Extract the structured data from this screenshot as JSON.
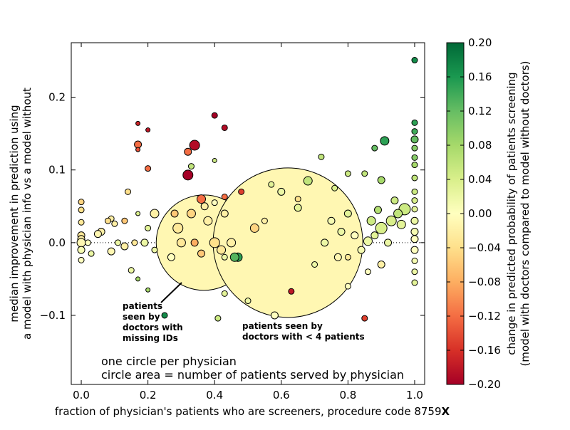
{
  "chart_data": {
    "type": "scatter",
    "xlabel": "fraction of physician's patients who are screeners, procedure code 8759",
    "xlabel_suffix": "X",
    "ylabel_lines": [
      "median improvement in prediction using",
      "a model with physician info vs a model without"
    ],
    "xlim": [
      -0.03,
      1.03
    ],
    "ylim": [
      -0.195,
      0.275
    ],
    "xticks": [
      0.0,
      0.2,
      0.4,
      0.6,
      0.8,
      1.0
    ],
    "xtick_labels": [
      "0.0",
      "0.2",
      "0.4",
      "0.6",
      "0.8",
      "1.0"
    ],
    "yticks": [
      -0.1,
      0.0,
      0.1,
      0.2
    ],
    "ytick_labels": [
      "−0.1",
      "0.0",
      "0.1",
      "0.2"
    ],
    "reference_line": {
      "y": 0.0,
      "style": "dotted"
    },
    "grid": false,
    "colorbar": {
      "label_lines": [
        "change in predicted probability of patients screening",
        "(model with doctors compared to model without doctors)"
      ],
      "range": [
        -0.2,
        0.2
      ],
      "ticks": [
        0.2,
        0.16,
        0.12,
        0.08,
        0.04,
        0.0,
        -0.04,
        -0.08,
        -0.12,
        -0.16,
        -0.2
      ],
      "tick_labels": [
        "0.20",
        "0.16",
        "0.12",
        "0.08",
        "0.04",
        "0.00",
        "−0.04",
        "−0.08",
        "−0.12",
        "−0.16",
        "−0.20"
      ],
      "colormap": "RdYlGn",
      "colormap_stops": [
        "#a50026",
        "#d73027",
        "#f46d43",
        "#fdae61",
        "#fee08b",
        "#ffffbf",
        "#d9ef8b",
        "#a6d96a",
        "#66bd63",
        "#1a9850",
        "#006837"
      ]
    },
    "notes": [
      "one circle per physician",
      "circle area = number of patients served by physician"
    ],
    "big_circles": [
      {
        "x": 0.368,
        "y": 0.0,
        "r_scale": "large",
        "color": -0.01,
        "label_lines": [
          "patients",
          "seen by",
          "doctors with",
          "missing IDs"
        ]
      },
      {
        "x": 0.62,
        "y": 0.0,
        "r_scale": "huge",
        "color": -0.01,
        "label_lines": [
          "patients seen by",
          "doctors with < 4 patients"
        ]
      }
    ],
    "points": [
      [
        1.0,
        0.251,
        0.17,
        4
      ],
      [
        1.0,
        0.165,
        0.15,
        4
      ],
      [
        1.0,
        0.153,
        0.14,
        4
      ],
      [
        1.0,
        0.142,
        0.12,
        5
      ],
      [
        1.0,
        0.13,
        0.1,
        4
      ],
      [
        1.0,
        0.117,
        0.1,
        4
      ],
      [
        1.0,
        0.107,
        0.08,
        4
      ],
      [
        1.0,
        0.089,
        0.06,
        4
      ],
      [
        1.0,
        0.07,
        0.05,
        4
      ],
      [
        1.0,
        0.058,
        0.04,
        4
      ],
      [
        1.0,
        0.046,
        0.03,
        4
      ],
      [
        1.0,
        0.03,
        0.02,
        5
      ],
      [
        1.0,
        0.015,
        0.01,
        5
      ],
      [
        1.0,
        0.005,
        0.0,
        5
      ],
      [
        1.0,
        -0.01,
        0.0,
        5
      ],
      [
        1.0,
        -0.025,
        0.01,
        4
      ],
      [
        1.0,
        -0.04,
        0.02,
        4
      ],
      [
        1.0,
        -0.055,
        0.03,
        4
      ],
      [
        0.91,
        0.14,
        0.15,
        6
      ],
      [
        0.88,
        0.13,
        0.12,
        4
      ],
      [
        0.9,
        0.086,
        0.08,
        5
      ],
      [
        0.85,
        0.095,
        0.06,
        4
      ],
      [
        0.97,
        0.046,
        0.05,
        8
      ],
      [
        0.95,
        0.04,
        0.06,
        6
      ],
      [
        0.94,
        0.058,
        0.05,
        5
      ],
      [
        0.93,
        0.03,
        0.04,
        7
      ],
      [
        0.96,
        0.025,
        0.03,
        6
      ],
      [
        0.89,
        0.045,
        0.07,
        5
      ],
      [
        0.87,
        0.03,
        0.05,
        6
      ],
      [
        0.9,
        0.02,
        0.04,
        8
      ],
      [
        0.88,
        0.01,
        0.03,
        5
      ],
      [
        0.86,
        0.002,
        0.02,
        6
      ],
      [
        0.92,
        0.0,
        0.02,
        5
      ],
      [
        0.84,
        -0.01,
        0.01,
        5
      ],
      [
        0.9,
        -0.03,
        -0.02,
        5
      ],
      [
        0.86,
        -0.04,
        0.0,
        4
      ],
      [
        0.72,
        0.118,
        0.06,
        4
      ],
      [
        0.8,
        0.095,
        0.05,
        4
      ],
      [
        0.76,
        0.075,
        0.04,
        4
      ],
      [
        0.8,
        0.04,
        0.03,
        5
      ],
      [
        0.78,
        0.015,
        0.02,
        5
      ],
      [
        0.75,
        0.03,
        0.01,
        5
      ],
      [
        0.73,
        0.0,
        0.02,
        5
      ],
      [
        0.77,
        -0.02,
        -0.01,
        5
      ],
      [
        0.8,
        -0.06,
        0.0,
        4
      ],
      [
        0.85,
        -0.104,
        -0.15,
        4
      ],
      [
        0.8,
        -0.02,
        -0.03,
        4
      ],
      [
        0.82,
        0.01,
        0.0,
        5
      ],
      [
        0.68,
        0.085,
        0.06,
        6
      ],
      [
        0.65,
        0.048,
        0.03,
        5
      ],
      [
        0.6,
        0.07,
        0.02,
        5
      ],
      [
        0.57,
        0.08,
        0.03,
        4
      ],
      [
        0.55,
        0.03,
        -0.02,
        4
      ],
      [
        0.52,
        0.02,
        -0.05,
        6
      ],
      [
        0.48,
        0.07,
        -0.15,
        4
      ],
      [
        0.47,
        -0.02,
        0.15,
        6
      ],
      [
        0.63,
        -0.067,
        -0.18,
        4
      ],
      [
        0.65,
        0.06,
        -0.04,
        4
      ],
      [
        0.7,
        -0.03,
        0.02,
        4
      ],
      [
        0.58,
        -0.1,
        0.0,
        5
      ],
      [
        0.5,
        -0.08,
        0.02,
        4
      ],
      [
        0.34,
        0.134,
        -0.19,
        7
      ],
      [
        0.32,
        0.093,
        -0.2,
        7
      ],
      [
        0.32,
        0.125,
        -0.12,
        5
      ],
      [
        0.33,
        0.105,
        0.06,
        4
      ],
      [
        0.4,
        0.175,
        -0.2,
        4
      ],
      [
        0.43,
        0.158,
        -0.19,
        4
      ],
      [
        0.43,
        0.063,
        -0.12,
        4
      ],
      [
        0.4,
        0.113,
        0.05,
        3
      ],
      [
        0.36,
        0.06,
        -0.12,
        6
      ],
      [
        0.28,
        0.04,
        -0.06,
        5
      ],
      [
        0.33,
        0.04,
        -0.05,
        6
      ],
      [
        0.29,
        0.02,
        -0.03,
        7
      ],
      [
        0.3,
        0.0,
        -0.03,
        6
      ],
      [
        0.36,
        -0.015,
        -0.06,
        5
      ],
      [
        0.37,
        0.05,
        -0.02,
        5
      ],
      [
        0.38,
        0.03,
        -0.02,
        6
      ],
      [
        0.4,
        0.0,
        -0.04,
        7
      ],
      [
        0.42,
        -0.01,
        -0.03,
        6
      ],
      [
        0.45,
        0.0,
        -0.02,
        6
      ],
      [
        0.34,
        0.0,
        -0.08,
        5
      ],
      [
        0.27,
        -0.02,
        0.0,
        5
      ],
      [
        0.43,
        0.04,
        -0.02,
        5
      ],
      [
        0.4,
        0.055,
        0.0,
        4
      ],
      [
        0.43,
        -0.02,
        0.02,
        4
      ],
      [
        0.46,
        -0.02,
        0.13,
        6
      ],
      [
        0.41,
        -0.104,
        0.05,
        4
      ],
      [
        0.43,
        -0.07,
        0.03,
        4
      ],
      [
        0.25,
        -0.1,
        0.17,
        4
      ],
      [
        0.2,
        -0.065,
        0.08,
        3
      ],
      [
        0.17,
        -0.05,
        0.08,
        3
      ],
      [
        0.2,
        0.102,
        -0.12,
        4
      ],
      [
        0.17,
        0.164,
        -0.17,
        3
      ],
      [
        0.2,
        0.155,
        -0.18,
        3
      ],
      [
        0.17,
        0.135,
        -0.12,
        5
      ],
      [
        0.17,
        0.128,
        -0.14,
        3
      ],
      [
        0.14,
        0.07,
        -0.04,
        4
      ],
      [
        0.13,
        0.03,
        -0.06,
        4
      ],
      [
        0.16,
        0.0,
        -0.03,
        4
      ],
      [
        0.13,
        -0.005,
        -0.02,
        5
      ],
      [
        0.17,
        0.04,
        0.04,
        3
      ],
      [
        0.2,
        0.02,
        0.03,
        4
      ],
      [
        0.22,
        0.04,
        -0.02,
        6
      ],
      [
        0.19,
        0.0,
        0.02,
        5
      ],
      [
        0.22,
        -0.01,
        0.02,
        4
      ],
      [
        0.09,
        0.033,
        -0.02,
        4
      ],
      [
        0.1,
        0.026,
        -0.02,
        4
      ],
      [
        0.08,
        0.03,
        -0.04,
        4
      ],
      [
        0.11,
        0.0,
        0.02,
        4
      ],
      [
        0.09,
        -0.012,
        -0.01,
        5
      ],
      [
        0.06,
        0.015,
        -0.02,
        5
      ],
      [
        0.05,
        0.012,
        -0.01,
        5
      ],
      [
        0.0,
        0.056,
        -0.05,
        4
      ],
      [
        0.0,
        0.045,
        -0.04,
        4
      ],
      [
        0.0,
        0.01,
        -0.03,
        5
      ],
      [
        0.0,
        0.005,
        -0.02,
        5
      ],
      [
        0.0,
        0.0,
        -0.01,
        6
      ],
      [
        0.0,
        -0.01,
        0.01,
        5
      ],
      [
        0.0,
        -0.024,
        0.0,
        4
      ],
      [
        0.0,
        0.028,
        -0.03,
        4
      ],
      [
        0.02,
        0.0,
        0.0,
        4
      ],
      [
        0.03,
        -0.015,
        0.02,
        4
      ],
      [
        0.15,
        -0.038,
        0.02,
        4
      ]
    ]
  }
}
